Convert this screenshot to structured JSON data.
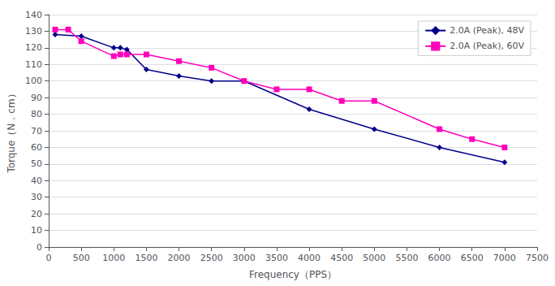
{
  "chart_data": {
    "type": "line",
    "xlabel": "Frequency（PPS）",
    "ylabel": "Torque（N．cm）",
    "series": [
      {
        "name": "2.0A (Peak), 48V",
        "color": "#00008B",
        "marker": "diamond",
        "x": [
          100,
          500,
          1000,
          1100,
          1200,
          1500,
          2000,
          2500,
          3000,
          4000,
          5000,
          6000,
          7000
        ],
        "values": [
          128,
          127,
          120,
          120,
          119,
          107,
          103,
          100,
          100,
          83,
          71,
          60,
          51
        ]
      },
      {
        "name": "2.0A (Peak), 60V",
        "color": "#FF00BB",
        "marker": "square",
        "x": [
          100,
          300,
          500,
          1000,
          1100,
          1200,
          1500,
          2000,
          2500,
          3000,
          3500,
          4000,
          4500,
          5000,
          6000,
          6500,
          7000
        ],
        "values": [
          131,
          131,
          124,
          115,
          116,
          116,
          116,
          112,
          108,
          100,
          95,
          95,
          88,
          88,
          71,
          65,
          60
        ]
      }
    ],
    "xlim": [
      0,
      7500
    ],
    "ylim": [
      0,
      140
    ],
    "xticks": [
      0,
      500,
      1000,
      1500,
      2000,
      2500,
      3000,
      3500,
      4000,
      4500,
      5000,
      5500,
      6000,
      6500,
      7000,
      7500
    ],
    "yticks": [
      0,
      10,
      20,
      30,
      40,
      50,
      60,
      70,
      80,
      90,
      100,
      110,
      120,
      130,
      140
    ],
    "grid": true,
    "legend": "upper right"
  }
}
